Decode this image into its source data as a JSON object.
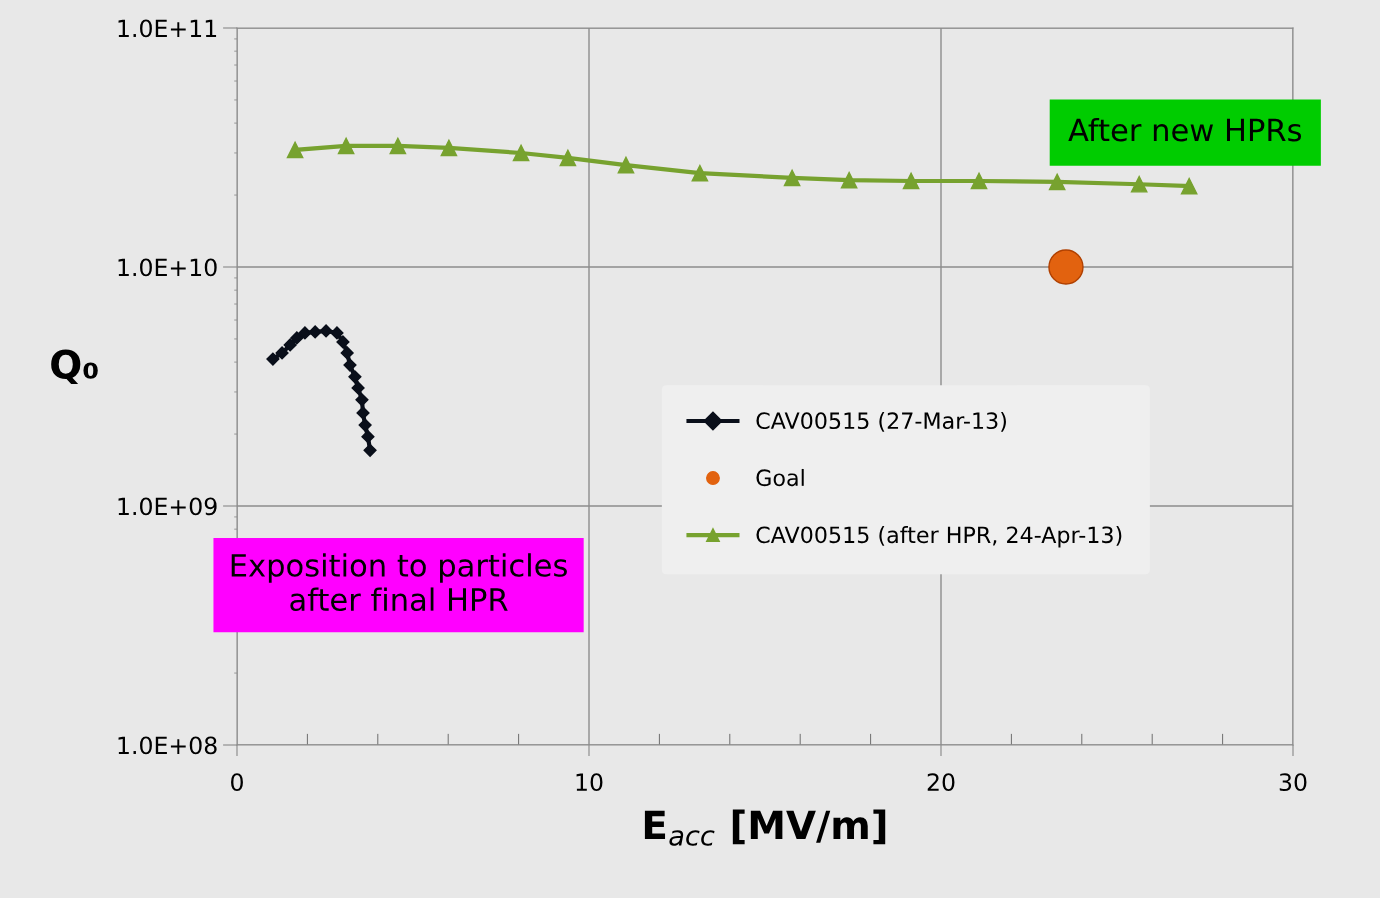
{
  "chart_data": {
    "type": "line",
    "xlabel": "E$_{acc}$ [MV/m]",
    "ylabel": "Q₀",
    "log": "y",
    "grid": true,
    "legend": "center right",
    "xlim": [
      0,
      30
    ],
    "xticks": [
      0,
      10,
      20,
      30
    ],
    "ylim": [
      100000000,
      100000000000
    ],
    "yticks": [
      {
        "value": 100000000,
        "label": "1.0E+08"
      },
      {
        "value": 1000000000,
        "label": "1.0E+09"
      },
      {
        "value": 10000000000,
        "label": "1.0E+10"
      },
      {
        "value": 100000000000,
        "label": "1.0E+11"
      }
    ],
    "series": [
      {
        "name": "CAV00515 (27-Mar-13)",
        "marker": "diamond",
        "color": "#0a0f1a",
        "x": [
          1.02,
          1.28,
          1.51,
          1.7,
          1.93,
          2.22,
          2.53,
          2.84,
          3.01,
          3.13,
          3.21,
          3.35,
          3.44,
          3.55,
          3.58,
          3.64,
          3.72,
          3.78
        ],
        "values": [
          4120000000.0,
          4370000000.0,
          4720000000.0,
          5050000000.0,
          5300000000.0,
          5350000000.0,
          5400000000.0,
          5300000000.0,
          4860000000.0,
          4370000000.0,
          3890000000.0,
          3470000000.0,
          3120000000.0,
          2780000000.0,
          2450000000.0,
          2180000000.0,
          1950000000.0,
          1710000000.0
        ]
      },
      {
        "name": "Goal",
        "type": "scatter",
        "marker": "circle",
        "color": "#e2620f",
        "x": [
          23.55
        ],
        "values": [
          10000000000.0
        ]
      },
      {
        "name": "CAV00515 (after HPR, 24-Apr-13)",
        "marker": "triangle",
        "color": "#77a22f",
        "x": [
          1.65,
          3.1,
          4.57,
          6.02,
          8.07,
          9.4,
          11.05,
          13.15,
          15.77,
          17.39,
          19.15,
          21.08,
          23.3,
          25.63,
          27.05
        ],
        "values": [
          30900000000.0,
          32100000000.0,
          32100000000.0,
          31500000000.0,
          30000000000.0,
          28600000000.0,
          26700000000.0,
          24700000000.0,
          23600000000.0,
          23100000000.0,
          22900000000.0,
          22900000000.0,
          22700000000.0,
          22200000000.0,
          21800000000.0
        ]
      }
    ],
    "annotations": [
      "After new HPRs",
      "Exposition to particles after final HPR"
    ]
  }
}
